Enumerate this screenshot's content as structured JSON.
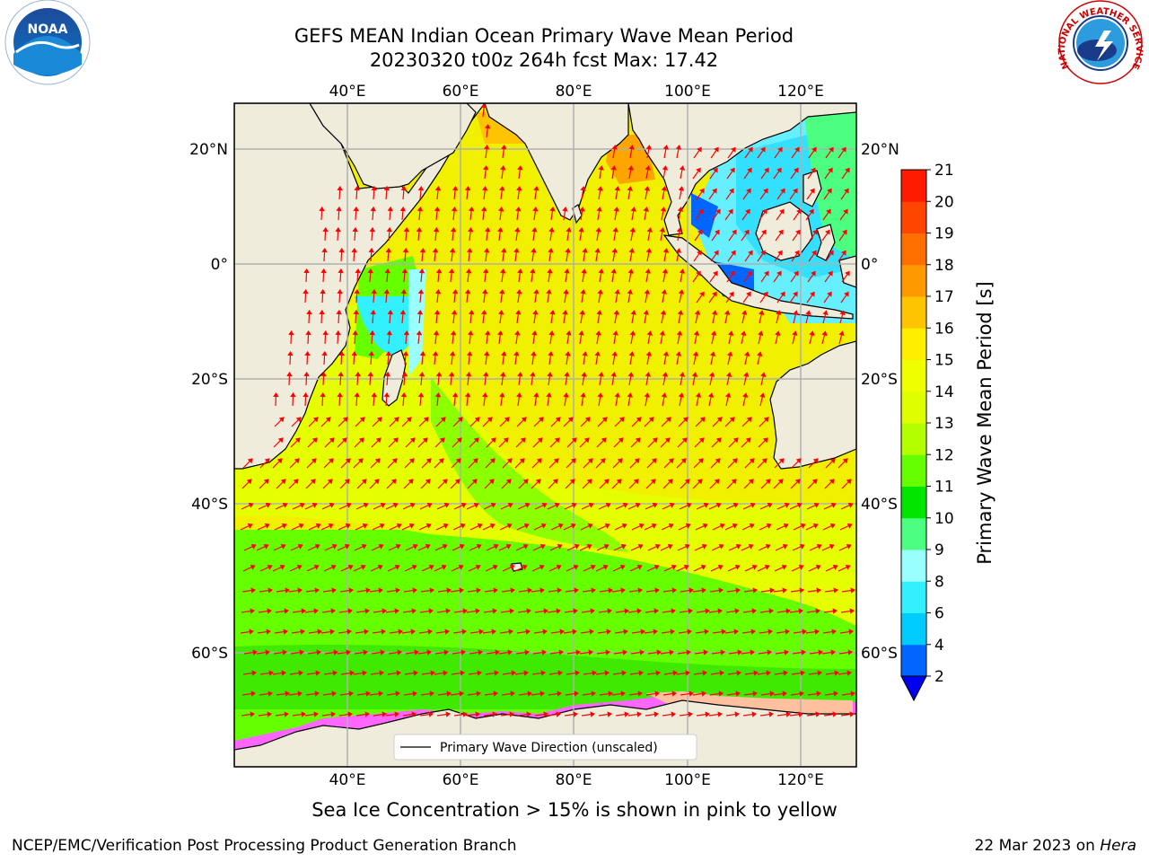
{
  "header": {
    "title_line1": "GEFS MEAN Indian Ocean Primary Wave Mean Period",
    "title_line2": "20230320 t00z 264h fcst   Max: 17.42"
  },
  "logos": {
    "noaa_text": "NOAA",
    "nws_text": "NATIONAL WEATHER SERVICE"
  },
  "map": {
    "lon_ticks_top": [
      "40°E",
      "60°E",
      "80°E",
      "100°E",
      "120°E"
    ],
    "lon_ticks_bottom": [
      "40°E",
      "60°E",
      "80°E",
      "100°E",
      "120°E"
    ],
    "lat_ticks_left": [
      "20°N",
      "0°",
      "20°S",
      "40°S",
      "60°S"
    ],
    "lat_ticks_right": [
      "20°N",
      "0°",
      "20°S",
      "40°S",
      "60°S"
    ],
    "legend_label": "Primary Wave Direction (unscaled)",
    "colors": {
      "land": "#efecdc",
      "arrow": "#ff0000",
      "sea_ice": "#ff66ff"
    }
  },
  "colorbar": {
    "title": "Primary Wave Mean Period [s]",
    "ticks": [
      "2",
      "4",
      "6",
      "8",
      "9",
      "10",
      "11",
      "12",
      "13",
      "14",
      "15",
      "16",
      "17",
      "18",
      "19",
      "20",
      "21"
    ],
    "colors": [
      "#0066ff",
      "#00ccff",
      "#33f0ff",
      "#99ffff",
      "#4dff80",
      "#00e600",
      "#66ff00",
      "#b3ff00",
      "#dfff00",
      "#f0ff00",
      "#ffee00",
      "#ffc400",
      "#ff9900",
      "#ff6f00",
      "#ff4500",
      "#ff1a00"
    ],
    "under_color": "#0000ee"
  },
  "subtitle": "Sea Ice Concentration > 15% is shown in pink to yellow",
  "footer": {
    "left": "NCEP/EMC/Verification Post Processing Product Generation Branch",
    "right_date": "22 Mar 2023 on",
    "right_machine": "Hera"
  }
}
